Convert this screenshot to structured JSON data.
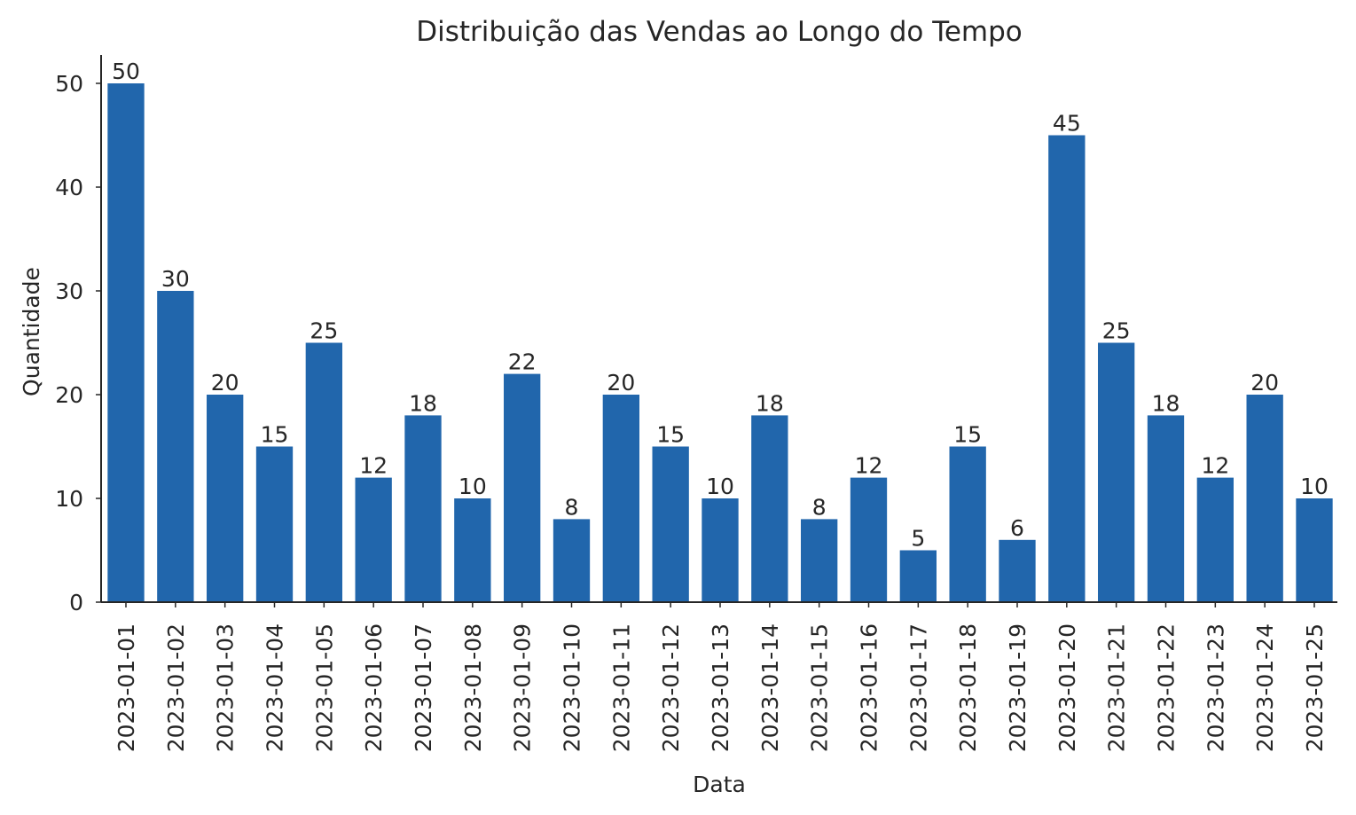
{
  "chart_data": {
    "type": "bar",
    "title": "Distribuição das Vendas ao Longo do Tempo",
    "xlabel": "Data",
    "ylabel": "Quantidade",
    "categories": [
      "2023-01-01",
      "2023-01-02",
      "2023-01-03",
      "2023-01-04",
      "2023-01-05",
      "2023-01-06",
      "2023-01-07",
      "2023-01-08",
      "2023-01-09",
      "2023-01-10",
      "2023-01-11",
      "2023-01-12",
      "2023-01-13",
      "2023-01-14",
      "2023-01-15",
      "2023-01-16",
      "2023-01-17",
      "2023-01-18",
      "2023-01-19",
      "2023-01-20",
      "2023-01-21",
      "2023-01-22",
      "2023-01-23",
      "2023-01-24",
      "2023-01-25"
    ],
    "values": [
      50,
      30,
      20,
      15,
      25,
      12,
      18,
      10,
      22,
      8,
      20,
      15,
      10,
      18,
      8,
      12,
      5,
      15,
      6,
      45,
      25,
      18,
      12,
      20,
      10
    ],
    "yticks": [
      0,
      10,
      20,
      30,
      40,
      50
    ],
    "ylim": [
      0,
      52.5
    ],
    "bar_color": "#2166ac",
    "grid": false,
    "data_labels": true
  }
}
